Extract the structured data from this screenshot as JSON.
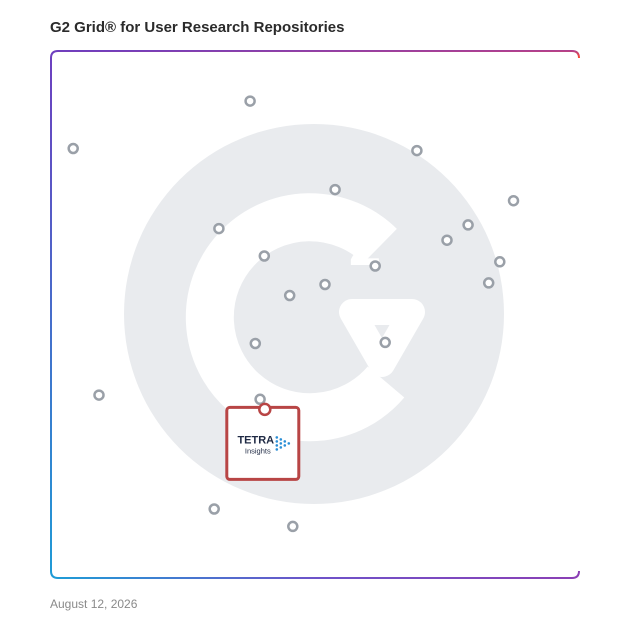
{
  "title": "G2 Grid® for User Research Repositories",
  "date": "August 12, 2026",
  "colors": {
    "accent_orange": "#ff4b2b",
    "accent_purple": "#6e3fbf",
    "accent_blue": "#1f9bd6",
    "highlight_red": "#b84545",
    "dot_gray": "#9aa0a8",
    "logo_gray": "#e9ebee"
  },
  "icons": {
    "background_logo": "g2-logo-icon"
  },
  "highlight": {
    "brand_top": "TETRA",
    "brand_bottom": "Insights",
    "icon": "tetra-triangle-icon"
  },
  "chart_data": {
    "type": "scatter",
    "title": "G2 Grid® for User Research Repositories",
    "xlim": [
      0,
      100
    ],
    "ylim": [
      0,
      100
    ],
    "points": [
      {
        "x": 37.7,
        "y": 90.5
      },
      {
        "x": 4.2,
        "y": 81.5
      },
      {
        "x": 69.3,
        "y": 81.1
      },
      {
        "x": 53.8,
        "y": 73.7
      },
      {
        "x": 87.6,
        "y": 71.6
      },
      {
        "x": 31.8,
        "y": 66.3
      },
      {
        "x": 79.0,
        "y": 67.0
      },
      {
        "x": 75.0,
        "y": 64.1
      },
      {
        "x": 40.4,
        "y": 61.1
      },
      {
        "x": 61.4,
        "y": 59.2
      },
      {
        "x": 85.0,
        "y": 60.0
      },
      {
        "x": 51.9,
        "y": 55.7
      },
      {
        "x": 45.2,
        "y": 53.6
      },
      {
        "x": 82.9,
        "y": 56.0
      },
      {
        "x": 38.7,
        "y": 44.5
      },
      {
        "x": 63.3,
        "y": 44.7
      },
      {
        "x": 9.1,
        "y": 34.7
      },
      {
        "x": 39.6,
        "y": 33.9
      },
      {
        "x": 30.9,
        "y": 13.1
      },
      {
        "x": 45.8,
        "y": 9.8
      }
    ],
    "highlight_point": {
      "x": 40.5,
      "y": 32.0,
      "label": "TETRA Insights"
    },
    "grid": true,
    "legend": "none"
  }
}
